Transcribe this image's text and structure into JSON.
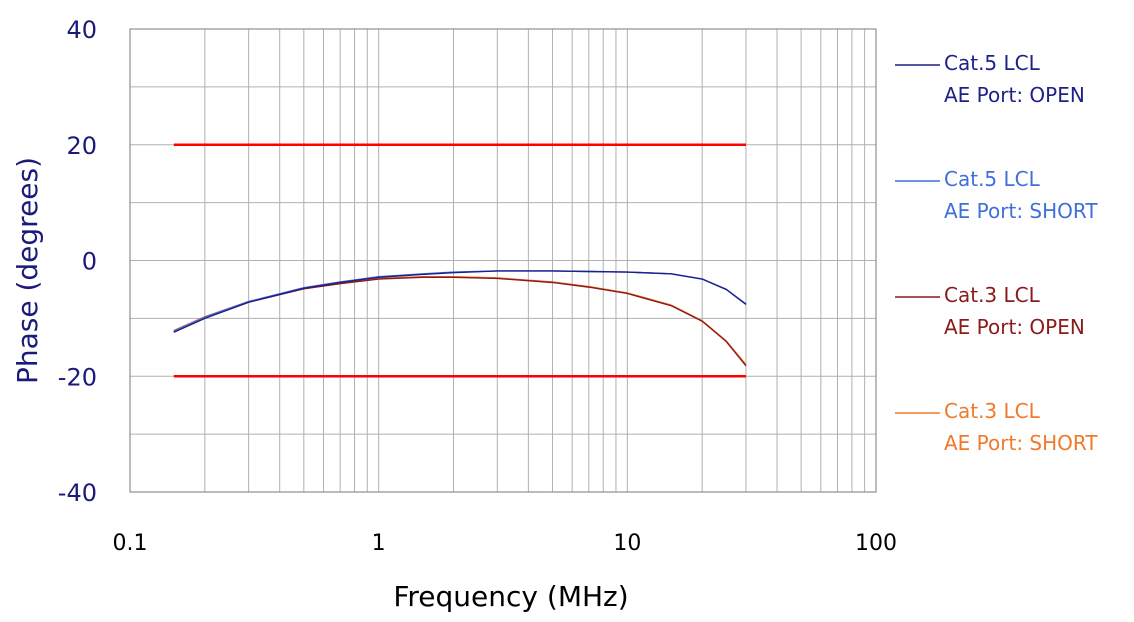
{
  "chart_data": {
    "type": "line",
    "title": "",
    "xlabel": "Frequency (MHz)",
    "ylabel": "Phase (degrees)",
    "x_scale": "log",
    "xlim": [
      0.1,
      100
    ],
    "ylim": [
      -40,
      40
    ],
    "x_ticks": [
      0.1,
      1,
      10,
      100
    ],
    "x_tick_labels": [
      "0.1",
      "1",
      "10",
      "100"
    ],
    "y_ticks": [
      40,
      20,
      0,
      -20,
      -40
    ],
    "y_tick_labels": [
      "40",
      "20",
      "0",
      "-20",
      "-40"
    ],
    "grid": true,
    "legend_position": "right",
    "colors": {
      "axis_text": "#1a1a7a",
      "grid": "#b0b0b0",
      "limit": "#ff0000"
    },
    "limits": [
      {
        "name": "upper-limit",
        "y": 20,
        "x_range": [
          0.15,
          30
        ]
      },
      {
        "name": "lower-limit",
        "y": -20,
        "x_range": [
          0.15,
          30
        ]
      }
    ],
    "series": [
      {
        "name": "Cat.5 LCL AE Port: OPEN",
        "legend_lines": [
          "Cat.5 LCL",
          "AE Port: OPEN"
        ],
        "color": "#1f1f8a",
        "x": [
          0.15,
          0.2,
          0.3,
          0.5,
          0.7,
          1,
          1.5,
          2,
          3,
          5,
          7,
          10,
          15,
          20,
          25,
          30
        ],
        "y": [
          -12.4,
          -10.0,
          -7.2,
          -4.8,
          -3.8,
          -2.9,
          -2.4,
          -2.1,
          -1.8,
          -1.8,
          -1.9,
          -2.0,
          -2.3,
          -3.2,
          -5.0,
          -7.6
        ]
      },
      {
        "name": "Cat.5 LCL AE Port: SHORT",
        "legend_lines": [
          "Cat.5 LCL",
          "AE Port: SHORT"
        ],
        "color": "#3f6fdc",
        "x": [
          0.15,
          0.2,
          0.3,
          0.5,
          0.7,
          1,
          1.5,
          2,
          3,
          5,
          7,
          10,
          15,
          20,
          25,
          30
        ],
        "y": [
          -12.2,
          -9.8,
          -7.1,
          -4.7,
          -3.7,
          -2.8,
          -2.3,
          -2.0,
          -1.8,
          -1.8,
          -1.9,
          -2.0,
          -2.3,
          -3.2,
          -5.0,
          -7.5
        ]
      },
      {
        "name": "Cat.3 LCL AE Port: OPEN",
        "legend_lines": [
          "Cat.3 LCL",
          "AE Port: OPEN"
        ],
        "color": "#8b1a1a",
        "x": [
          0.15,
          0.2,
          0.3,
          0.5,
          0.7,
          1,
          1.5,
          2,
          3,
          5,
          7,
          10,
          15,
          20,
          25,
          30
        ],
        "y": [
          -12.3,
          -9.9,
          -7.2,
          -4.9,
          -4.0,
          -3.2,
          -2.9,
          -2.9,
          -3.1,
          -3.8,
          -4.6,
          -5.7,
          -7.8,
          -10.5,
          -14.0,
          -18.2
        ]
      },
      {
        "name": "Cat.3 LCL AE Port: SHORT",
        "legend_lines": [
          "Cat.3 LCL",
          "AE Port: SHORT"
        ],
        "color": "#f07a2a",
        "x": [
          0.15,
          0.2,
          0.3,
          0.5,
          0.7,
          1,
          1.5,
          2,
          3,
          5,
          7,
          10,
          15,
          20,
          25,
          30
        ],
        "y": [
          -12.1,
          -9.7,
          -7.1,
          -4.8,
          -3.9,
          -3.1,
          -2.8,
          -2.8,
          -3.0,
          -3.7,
          -4.5,
          -5.6,
          -7.7,
          -10.4,
          -13.9,
          -18.0
        ]
      }
    ]
  }
}
